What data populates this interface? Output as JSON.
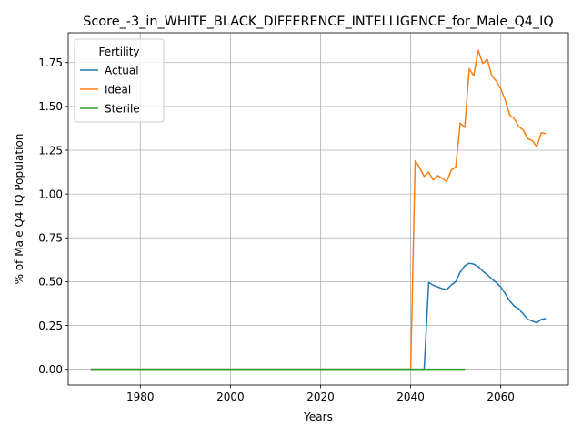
{
  "chart_data": {
    "type": "line",
    "title": "Score_-3_in_WHITE_BLACK_DIFFERENCE_INTELLIGENCE_for_Male_Q4_IQ",
    "xlabel": "Years",
    "ylabel": "% of Male Q4_IQ Population",
    "xlim": [
      1964,
      2075
    ],
    "ylim": [
      -0.09,
      1.92
    ],
    "xticks": [
      1980,
      2000,
      2020,
      2040,
      2060
    ],
    "xtick_labels": [
      "1980",
      "2000",
      "2020",
      "2040",
      "2060"
    ],
    "yticks": [
      0.0,
      0.25,
      0.5,
      0.75,
      1.0,
      1.25,
      1.5,
      1.75
    ],
    "ytick_labels": [
      "0.00",
      "0.25",
      "0.50",
      "0.75",
      "1.00",
      "1.25",
      "1.50",
      "1.75"
    ],
    "grid": true,
    "legend": {
      "title": "Fertility",
      "placement": "top-left"
    },
    "series": [
      {
        "name": "Actual",
        "color": "#1f77b4",
        "x": [
          1969,
          2043,
          2044,
          2045,
          2046,
          2047,
          2048,
          2049,
          2050,
          2051,
          2052,
          2053,
          2054,
          2055,
          2056,
          2057,
          2058,
          2059,
          2060,
          2061,
          2062,
          2063,
          2064,
          2065,
          2066,
          2067,
          2068,
          2069,
          2070
        ],
        "y": [
          0.0,
          0.0,
          0.495,
          0.48,
          0.47,
          0.46,
          0.455,
          0.48,
          0.5,
          0.555,
          0.59,
          0.605,
          0.6,
          0.585,
          0.56,
          0.54,
          0.515,
          0.495,
          0.47,
          0.43,
          0.39,
          0.36,
          0.345,
          0.315,
          0.285,
          0.275,
          0.265,
          0.285,
          0.29
        ]
      },
      {
        "name": "Ideal",
        "color": "#ff7f0e",
        "x": [
          1969,
          2040,
          2041,
          2042,
          2043,
          2044,
          2045,
          2046,
          2047,
          2048,
          2049,
          2050,
          2051,
          2052,
          2053,
          2054,
          2055,
          2056,
          2057,
          2058,
          2059,
          2060,
          2061,
          2062,
          2063,
          2064,
          2065,
          2066,
          2067,
          2068,
          2069,
          2070
        ],
        "y": [
          0.0,
          0.0,
          1.19,
          1.15,
          1.1,
          1.125,
          1.08,
          1.105,
          1.09,
          1.07,
          1.135,
          1.155,
          1.405,
          1.38,
          1.715,
          1.675,
          1.82,
          1.745,
          1.77,
          1.675,
          1.645,
          1.6,
          1.535,
          1.45,
          1.43,
          1.385,
          1.365,
          1.315,
          1.305,
          1.27,
          1.35,
          1.345
        ]
      },
      {
        "name": "Sterile",
        "color": "#2ca02c",
        "x": [
          1969,
          2052
        ],
        "y": [
          0.0,
          0.0
        ]
      }
    ]
  }
}
